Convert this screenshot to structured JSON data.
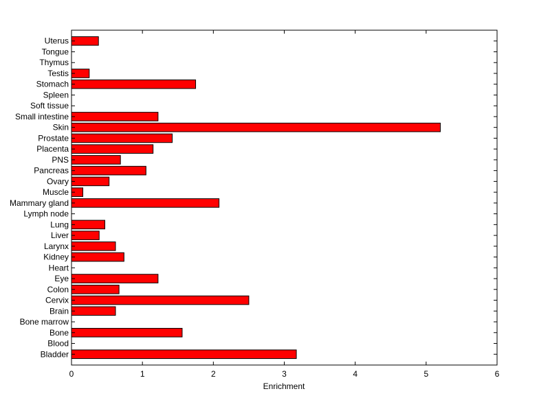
{
  "chart_data": {
    "type": "bar",
    "orientation": "horizontal",
    "title": "",
    "xlabel": "Enrichment",
    "ylabel": "",
    "xlim": [
      0,
      6
    ],
    "xticks": [
      "0",
      "1",
      "2",
      "3",
      "4",
      "5",
      "6"
    ],
    "grid": false,
    "bar_color": "#ff0000",
    "edge_color": "#000000",
    "categories": [
      "Bladder",
      "Blood",
      "Bone",
      "Bone marrow",
      "Brain",
      "Cervix",
      "Colon",
      "Eye",
      "Heart",
      "Kidney",
      "Larynx",
      "Liver",
      "Lung",
      "Lymph node",
      "Mammary gland",
      "Muscle",
      "Ovary",
      "Pancreas",
      "PNS",
      "Placenta",
      "Prostate",
      "Skin",
      "Small intestine",
      "Soft tissue",
      "Spleen",
      "Stomach",
      "Testis",
      "Thymus",
      "Tongue",
      "Uterus"
    ],
    "values": [
      3.17,
      0,
      1.56,
      0,
      0.62,
      2.5,
      0.67,
      1.22,
      0,
      0.74,
      0.62,
      0.39,
      0.47,
      0,
      2.08,
      0.16,
      0.53,
      1.05,
      0.69,
      1.15,
      1.42,
      5.2,
      1.22,
      0,
      0,
      1.75,
      0.25,
      0,
      0,
      0.38
    ]
  }
}
